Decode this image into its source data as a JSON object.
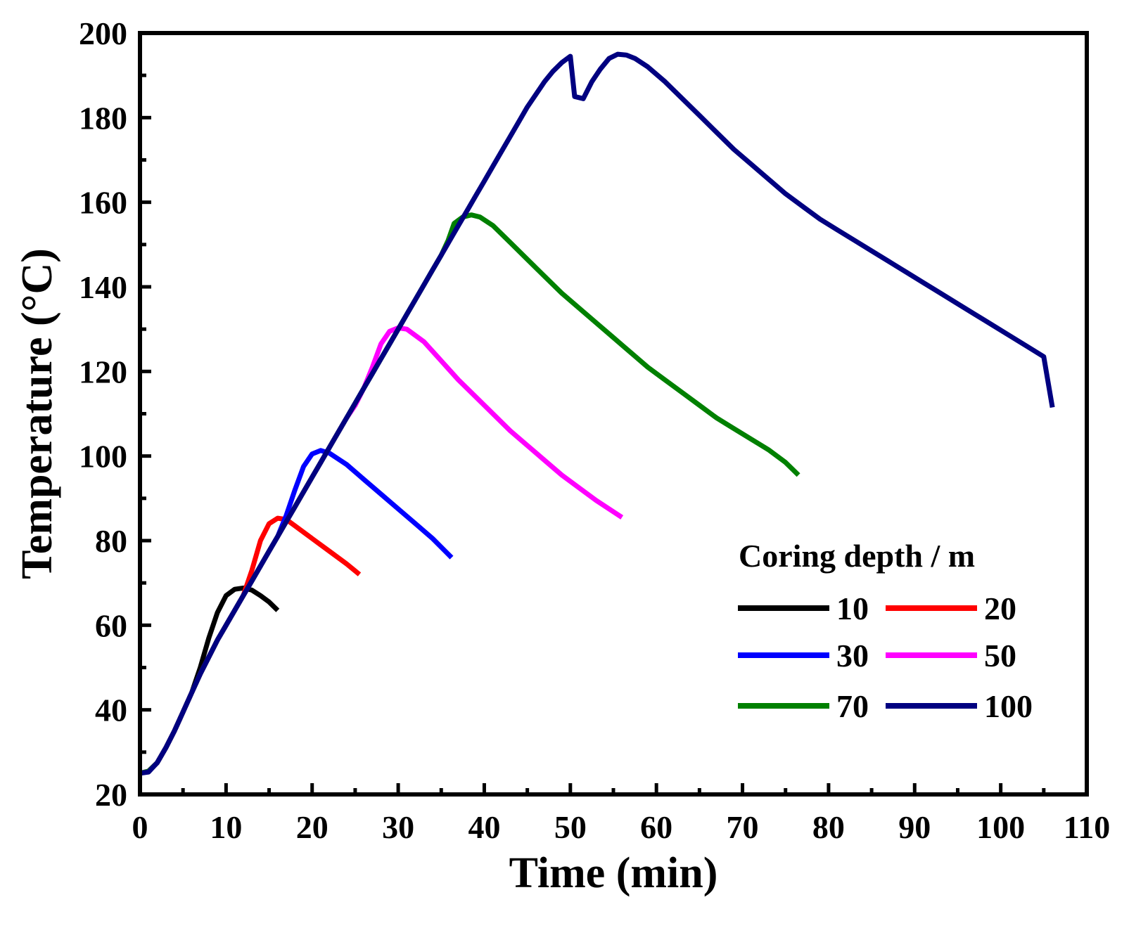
{
  "chart_data": {
    "type": "line",
    "title": "",
    "xlabel": "Time (min)",
    "ylabel": "Temperature (°C)",
    "xlim": [
      0,
      110
    ],
    "ylim": [
      20,
      200
    ],
    "xticks": [
      0,
      10,
      20,
      30,
      40,
      50,
      60,
      70,
      80,
      90,
      100,
      110
    ],
    "yticks": [
      20,
      40,
      60,
      80,
      100,
      120,
      140,
      160,
      180,
      200
    ],
    "grid": false,
    "legend": {
      "title": "Coring depth / m",
      "placement": "bottom-right",
      "columns": 2
    },
    "series": [
      {
        "name": "10",
        "color": "#000000",
        "points": [
          [
            0,
            25
          ],
          [
            1,
            25.5
          ],
          [
            2,
            27.5
          ],
          [
            3,
            31
          ],
          [
            4,
            35
          ],
          [
            5,
            39.5
          ],
          [
            6,
            44
          ],
          [
            7,
            50
          ],
          [
            8,
            57
          ],
          [
            9,
            63
          ],
          [
            10,
            67
          ],
          [
            11,
            68.5
          ],
          [
            12,
            68.8
          ],
          [
            13,
            68.3
          ],
          [
            14,
            67
          ],
          [
            15,
            65.5
          ],
          [
            16,
            63.5
          ]
        ]
      },
      {
        "name": "20",
        "color": "#ff0000",
        "points": [
          [
            0,
            25
          ],
          [
            1,
            25.5
          ],
          [
            2,
            27.5
          ],
          [
            3,
            31
          ],
          [
            4,
            35
          ],
          [
            5,
            39.5
          ],
          [
            6,
            44
          ],
          [
            7,
            48.5
          ],
          [
            8,
            52.5
          ],
          [
            9,
            56.5
          ],
          [
            10,
            60
          ],
          [
            11,
            63.5
          ],
          [
            12,
            67
          ],
          [
            13,
            73
          ],
          [
            14,
            80
          ],
          [
            15,
            84
          ],
          [
            16,
            85.3
          ],
          [
            17,
            85
          ],
          [
            18,
            83.5
          ],
          [
            20,
            80.5
          ],
          [
            22,
            77.5
          ],
          [
            24,
            74.5
          ],
          [
            25.5,
            72
          ]
        ]
      },
      {
        "name": "30",
        "color": "#0000ff",
        "points": [
          [
            0,
            25
          ],
          [
            1,
            25.5
          ],
          [
            2,
            27.5
          ],
          [
            3,
            31
          ],
          [
            4,
            35
          ],
          [
            5,
            39.5
          ],
          [
            6,
            44
          ],
          [
            7,
            48.5
          ],
          [
            8,
            52.5
          ],
          [
            9,
            56.5
          ],
          [
            10,
            60
          ],
          [
            11,
            63.5
          ],
          [
            12,
            67
          ],
          [
            13,
            70.5
          ],
          [
            14,
            74
          ],
          [
            15,
            77.5
          ],
          [
            16,
            81
          ],
          [
            17,
            86
          ],
          [
            18,
            92
          ],
          [
            19,
            97.5
          ],
          [
            20,
            100.5
          ],
          [
            21,
            101.3
          ],
          [
            22,
            100.7
          ],
          [
            24,
            98
          ],
          [
            26,
            94.5
          ],
          [
            28,
            91
          ],
          [
            30,
            87.5
          ],
          [
            32,
            84
          ],
          [
            34,
            80.5
          ],
          [
            36.2,
            76
          ]
        ]
      },
      {
        "name": "50",
        "color": "#ff00ff",
        "points": [
          [
            0,
            25
          ],
          [
            1,
            25.5
          ],
          [
            2,
            27.5
          ],
          [
            3,
            31
          ],
          [
            4,
            35
          ],
          [
            5,
            39.5
          ],
          [
            6,
            44
          ],
          [
            7,
            48.5
          ],
          [
            8,
            52.5
          ],
          [
            9,
            56.5
          ],
          [
            10,
            60
          ],
          [
            11,
            63.5
          ],
          [
            12,
            67
          ],
          [
            13,
            70.5
          ],
          [
            14,
            74
          ],
          [
            15,
            77.5
          ],
          [
            16,
            81
          ],
          [
            17,
            84.5
          ],
          [
            18,
            88
          ],
          [
            19,
            91.5
          ],
          [
            20,
            95
          ],
          [
            21,
            98.5
          ],
          [
            22,
            102
          ],
          [
            23,
            105.5
          ],
          [
            24,
            109
          ],
          [
            25,
            112
          ],
          [
            26,
            116
          ],
          [
            27,
            121
          ],
          [
            28,
            126.5
          ],
          [
            29,
            129.5
          ],
          [
            30,
            130.3
          ],
          [
            31,
            130
          ],
          [
            33,
            127
          ],
          [
            35,
            122.5
          ],
          [
            37,
            118
          ],
          [
            39,
            114
          ],
          [
            41,
            110
          ],
          [
            43,
            106
          ],
          [
            45,
            102.5
          ],
          [
            47,
            99
          ],
          [
            49,
            95.5
          ],
          [
            51,
            92.5
          ],
          [
            53,
            89.5
          ],
          [
            56,
            85.5
          ]
        ]
      },
      {
        "name": "70",
        "color": "#008000",
        "points": [
          [
            0,
            25
          ],
          [
            1,
            25.5
          ],
          [
            2,
            27.5
          ],
          [
            3,
            31
          ],
          [
            4,
            35
          ],
          [
            5,
            39.5
          ],
          [
            6,
            44
          ],
          [
            7,
            48.5
          ],
          [
            8,
            52.5
          ],
          [
            9,
            56.5
          ],
          [
            10,
            60
          ],
          [
            11,
            63.5
          ],
          [
            12,
            67
          ],
          [
            13,
            70.5
          ],
          [
            14,
            74
          ],
          [
            15,
            77.5
          ],
          [
            16,
            81
          ],
          [
            17,
            84.5
          ],
          [
            18,
            88
          ],
          [
            19,
            91.5
          ],
          [
            20,
            95
          ],
          [
            21,
            98.5
          ],
          [
            22,
            102
          ],
          [
            23,
            105.5
          ],
          [
            24,
            109
          ],
          [
            25,
            112.5
          ],
          [
            26,
            116
          ],
          [
            27,
            119.5
          ],
          [
            28,
            123
          ],
          [
            29,
            126.5
          ],
          [
            30,
            130
          ],
          [
            31,
            133.5
          ],
          [
            32,
            137
          ],
          [
            33,
            140.5
          ],
          [
            34,
            144
          ],
          [
            35,
            147.5
          ],
          [
            35.8,
            151
          ],
          [
            36.5,
            155
          ],
          [
            37.5,
            156.5
          ],
          [
            38.5,
            157
          ],
          [
            39.5,
            156.5
          ],
          [
            41,
            154.5
          ],
          [
            43,
            150.5
          ],
          [
            45,
            146.5
          ],
          [
            47,
            142.5
          ],
          [
            49,
            138.5
          ],
          [
            51,
            135
          ],
          [
            53,
            131.5
          ],
          [
            55,
            128
          ],
          [
            57,
            124.5
          ],
          [
            59,
            121
          ],
          [
            61,
            118
          ],
          [
            63,
            115
          ],
          [
            65,
            112
          ],
          [
            67,
            109
          ],
          [
            69,
            106.5
          ],
          [
            71,
            104
          ],
          [
            73,
            101.5
          ],
          [
            75,
            98.5
          ],
          [
            76.5,
            95.5
          ]
        ]
      },
      {
        "name": "100",
        "color": "#000080",
        "points": [
          [
            0,
            25
          ],
          [
            1,
            25.3
          ],
          [
            2,
            27.5
          ],
          [
            3,
            31
          ],
          [
            4,
            35
          ],
          [
            5,
            39.5
          ],
          [
            6,
            44
          ],
          [
            7,
            48.5
          ],
          [
            8,
            52.5
          ],
          [
            9,
            56.5
          ],
          [
            10,
            60
          ],
          [
            11,
            63.5
          ],
          [
            12,
            67
          ],
          [
            13,
            70.5
          ],
          [
            14,
            74
          ],
          [
            15,
            77.5
          ],
          [
            16,
            81
          ],
          [
            17,
            84.5
          ],
          [
            18,
            88
          ],
          [
            19,
            91.5
          ],
          [
            20,
            95
          ],
          [
            21,
            98.5
          ],
          [
            22,
            102
          ],
          [
            23,
            105.5
          ],
          [
            24,
            109
          ],
          [
            25,
            112.5
          ],
          [
            26,
            116
          ],
          [
            27,
            119.5
          ],
          [
            28,
            123
          ],
          [
            29,
            126.5
          ],
          [
            30,
            130
          ],
          [
            31,
            133.5
          ],
          [
            32,
            137
          ],
          [
            33,
            140.5
          ],
          [
            34,
            144
          ],
          [
            35,
            147.5
          ],
          [
            36,
            151
          ],
          [
            37,
            154.5
          ],
          [
            38,
            158
          ],
          [
            39,
            161.5
          ],
          [
            40,
            165
          ],
          [
            41,
            168.5
          ],
          [
            42,
            172
          ],
          [
            43,
            175.5
          ],
          [
            44,
            179
          ],
          [
            45,
            182.5
          ],
          [
            46,
            185.5
          ],
          [
            47,
            188.5
          ],
          [
            48,
            191
          ],
          [
            49,
            193
          ],
          [
            50,
            194.5
          ],
          [
            50.5,
            185
          ],
          [
            51.5,
            184.5
          ],
          [
            52.5,
            188.5
          ],
          [
            53.5,
            191.5
          ],
          [
            54.5,
            194
          ],
          [
            55.5,
            195
          ],
          [
            56.5,
            194.8
          ],
          [
            57.5,
            194
          ],
          [
            59,
            192
          ],
          [
            61,
            188.5
          ],
          [
            63,
            184.5
          ],
          [
            65,
            180.5
          ],
          [
            67,
            176.5
          ],
          [
            69,
            172.5
          ],
          [
            71,
            169
          ],
          [
            73,
            165.5
          ],
          [
            75,
            162
          ],
          [
            77,
            159
          ],
          [
            79,
            156
          ],
          [
            81,
            153.5
          ],
          [
            83,
            151
          ],
          [
            85,
            148.5
          ],
          [
            87,
            146
          ],
          [
            89,
            143.5
          ],
          [
            91,
            141
          ],
          [
            93,
            138.5
          ],
          [
            95,
            136
          ],
          [
            97,
            133.5
          ],
          [
            99,
            131
          ],
          [
            101,
            128.5
          ],
          [
            103,
            126
          ],
          [
            105,
            123.5
          ],
          [
            106,
            111.5
          ]
        ]
      }
    ]
  }
}
